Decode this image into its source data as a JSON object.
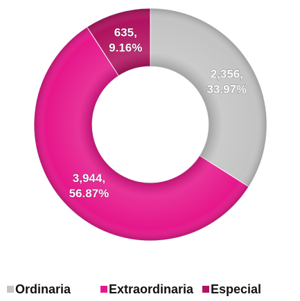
{
  "chart_data": {
    "type": "donut",
    "categories": [
      "Ordinaria",
      "Extraordinaria",
      "Especial"
    ],
    "values": [
      2356,
      3944,
      635
    ],
    "value_labels": [
      "2,356,",
      "3,944,",
      "635,"
    ],
    "percents": [
      33.97,
      56.87,
      9.16
    ],
    "percent_labels": [
      "33.97%",
      "56.87%",
      "9.16%"
    ],
    "colors": [
      "#c4c4c4",
      "#e6178b",
      "#b0135f"
    ],
    "legend": "bottom"
  }
}
